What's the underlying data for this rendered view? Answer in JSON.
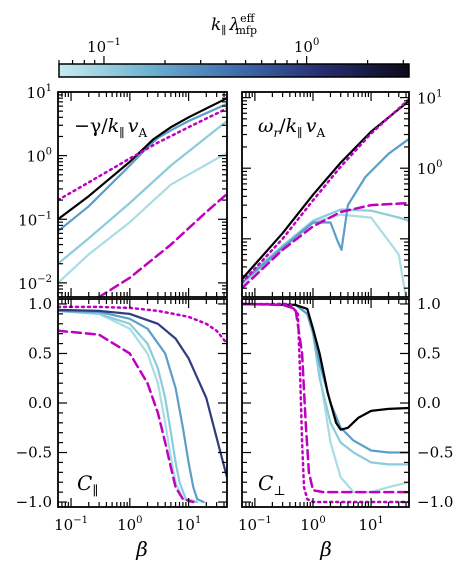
{
  "colorbar": {
    "label": "k_∥ λ_mfp^eff",
    "label_main": "k",
    "label_sub": "∥",
    "label_lambda": "λ",
    "label_sup": "eff",
    "label_sub2": "mfp",
    "tick_labels": [
      {
        "base": "10",
        "exp": "−1",
        "value": 0.1
      },
      {
        "base": "10",
        "exp": "0",
        "value": 1
      }
    ],
    "range": [
      0.06,
      3.2
    ],
    "log": true,
    "colormap": [
      "#c7ebee",
      "#6fb4d1",
      "#3f6fb0",
      "#272e72",
      "#0b0a1a"
    ]
  },
  "colors": {
    "curve_colors": [
      "#a9dde4",
      "#8ccbd9",
      "#5b9ec9",
      "#2f3d80",
      "#000000"
    ],
    "magenta": "#c000c0"
  },
  "x_axis": {
    "label": "β",
    "tick_labels": [
      {
        "base": "10",
        "exp": "−1",
        "value": 0.1
      },
      {
        "base": "10",
        "exp": "0",
        "value": 1
      },
      {
        "base": "10",
        "exp": "1",
        "value": 10
      }
    ],
    "range": [
      0.06,
      45
    ],
    "log": true
  },
  "top_left_y_ticks": [
    {
      "base": "10",
      "exp": "1",
      "value": 10
    },
    {
      "base": "10",
      "exp": "0",
      "value": 1
    },
    {
      "base": "10",
      "exp": "−1",
      "value": 0.1
    },
    {
      "base": "10",
      "exp": "−2",
      "value": 0.01
    }
  ],
  "top_right_y_ticks": [
    {
      "base": "10",
      "exp": "1",
      "value": 10
    },
    {
      "base": "10",
      "exp": "0",
      "value": 1
    }
  ],
  "bottom_y_ticks": [
    "1.0",
    "0.5",
    "0.0",
    "−0.5",
    "−1.0"
  ],
  "chart_data": [
    {
      "type": "line",
      "panel": "top-left",
      "title_parts": {
        "neg": "−γ/",
        "k": "k",
        "par": "∥",
        "v": "v",
        "A": "A"
      },
      "xlog": true,
      "ylog": true,
      "xlim": [
        0.06,
        45
      ],
      "ylim": [
        0.006,
        10
      ],
      "series": [
        {
          "x": [
            0.06,
            0.2,
            1,
            5,
            45
          ],
          "y": [
            0.01,
            0.028,
            0.09,
            0.35,
            1.1
          ],
          "style": "solid",
          "color_index": 0
        },
        {
          "x": [
            0.06,
            0.2,
            1,
            5,
            45
          ],
          "y": [
            0.02,
            0.05,
            0.18,
            0.7,
            3.5
          ],
          "style": "solid",
          "color_index": 1
        },
        {
          "x": [
            0.06,
            0.2,
            1,
            2,
            3,
            5,
            10,
            45
          ],
          "y": [
            0.065,
            0.16,
            0.7,
            1.35,
            1.9,
            2.5,
            3.5,
            6.5
          ],
          "style": "solid",
          "color_index": 2
        },
        {
          "x": [
            0.06,
            0.2,
            1,
            2.5,
            5,
            10,
            45
          ],
          "y": [
            0.1,
            0.23,
            0.8,
            1.8,
            2.8,
            4,
            8
          ],
          "style": "solid",
          "color_index": 4
        },
        {
          "x": [
            0.06,
            0.2,
            1,
            3,
            10,
            45
          ],
          "y": [
            0.2,
            0.38,
            0.9,
            1.6,
            2.8,
            5.5
          ],
          "style": "dotted",
          "color": "magenta"
        },
        {
          "x": [
            0.06,
            0.3,
            1,
            5,
            20,
            45
          ],
          "y": [
            0.004,
            0.006,
            0.012,
            0.04,
            0.13,
            0.25
          ],
          "style": "dashed",
          "color": "magenta"
        }
      ]
    },
    {
      "type": "line",
      "panel": "top-right",
      "title_parts": {
        "omega": "ω",
        "r": "r",
        "k": "k",
        "par": "∥",
        "v": "v",
        "A": "A"
      },
      "xlog": true,
      "ylog": true,
      "xlim": [
        0.06,
        45
      ],
      "ylim": [
        0.015,
        12
      ],
      "series": [
        {
          "x": [
            0.06,
            0.3,
            1,
            3,
            10,
            30,
            45
          ],
          "y": [
            0.025,
            0.08,
            0.18,
            0.26,
            0.25,
            0.2,
            0.18
          ],
          "style": "solid",
          "color_index": 1
        },
        {
          "x": [
            0.06,
            0.3,
            1,
            3,
            10,
            30,
            45
          ],
          "y": [
            0.022,
            0.07,
            0.17,
            0.22,
            0.2,
            0.06,
            0.008
          ],
          "style": "solid",
          "color_index": 0
        },
        {
          "x": [
            0.06,
            0.3,
            1,
            2,
            2.7,
            3.1,
            4,
            8,
            20,
            45
          ],
          "y": [
            0.024,
            0.075,
            0.17,
            0.17,
            0.09,
            0.07,
            0.3,
            0.75,
            1.6,
            2.6
          ],
          "style": "solid",
          "color_index": 2
        },
        {
          "x": [
            0.06,
            0.3,
            1,
            3,
            10,
            45
          ],
          "y": [
            0.027,
            0.12,
            0.42,
            1.2,
            3.3,
            9
          ],
          "style": "solid",
          "color_index": 4
        },
        {
          "x": [
            0.06,
            0.3,
            1,
            3,
            10,
            45
          ],
          "y": [
            0.024,
            0.1,
            0.35,
            1.05,
            3.1,
            9.5
          ],
          "style": "dotted",
          "color": "magenta"
        },
        {
          "x": [
            0.06,
            0.3,
            1,
            3,
            10,
            45
          ],
          "y": [
            0.02,
            0.07,
            0.15,
            0.24,
            0.3,
            0.32
          ],
          "style": "dashed",
          "color": "magenta"
        }
      ]
    },
    {
      "type": "line",
      "panel": "bottom-left",
      "title_parts": {
        "C": "C",
        "sub": "∥"
      },
      "xlog": true,
      "ylog": false,
      "xlim": [
        0.06,
        45
      ],
      "ylim": [
        -1.05,
        1.05
      ],
      "series": [
        {
          "x": [
            0.06,
            0.3,
            1,
            2,
            3,
            4,
            5,
            6,
            8,
            12
          ],
          "y": [
            0.93,
            0.9,
            0.75,
            0.5,
            0.2,
            -0.2,
            -0.55,
            -0.8,
            -0.97,
            -1.0
          ],
          "style": "solid",
          "color_index": 0
        },
        {
          "x": [
            0.06,
            0.3,
            1,
            2,
            3,
            4,
            5,
            6,
            7,
            9,
            14
          ],
          "y": [
            0.93,
            0.9,
            0.8,
            0.6,
            0.35,
            0.05,
            -0.3,
            -0.6,
            -0.8,
            -0.97,
            -1.0
          ],
          "style": "solid",
          "color_index": 1
        },
        {
          "x": [
            0.06,
            0.3,
            1,
            2,
            4,
            6,
            8,
            10,
            12,
            14,
            18
          ],
          "y": [
            0.93,
            0.92,
            0.85,
            0.75,
            0.5,
            0.15,
            -0.25,
            -0.6,
            -0.85,
            -0.97,
            -1.0
          ],
          "style": "solid",
          "color_index": 2
        },
        {
          "x": [
            0.06,
            0.3,
            1,
            3,
            6,
            10,
            20,
            30,
            45
          ],
          "y": [
            0.94,
            0.93,
            0.9,
            0.8,
            0.65,
            0.45,
            0.05,
            -0.35,
            -0.75
          ],
          "style": "solid",
          "color_index": 3
        },
        {
          "x": [
            0.06,
            0.3,
            1,
            3,
            10,
            20,
            30,
            45
          ],
          "y": [
            0.97,
            0.97,
            0.96,
            0.93,
            0.87,
            0.8,
            0.73,
            0.6
          ],
          "style": "dotted",
          "color": "magenta"
        },
        {
          "x": [
            0.06,
            0.3,
            1,
            2,
            3,
            4,
            5,
            6,
            8,
            12
          ],
          "y": [
            0.73,
            0.69,
            0.5,
            0.2,
            -0.1,
            -0.4,
            -0.65,
            -0.85,
            -0.97,
            -1.0
          ],
          "style": "dashed",
          "color": "magenta"
        }
      ]
    },
    {
      "type": "line",
      "panel": "bottom-right",
      "title_parts": {
        "C": "C",
        "sub": "⊥"
      },
      "xlog": true,
      "ylog": false,
      "xlim": [
        0.06,
        45
      ],
      "ylim": [
        -1.05,
        1.05
      ],
      "series": [
        {
          "x": [
            0.06,
            0.5,
            0.8,
            1,
            1.3,
            2,
            3,
            5,
            10,
            20,
            45
          ],
          "y": [
            1.0,
            0.99,
            0.9,
            0.7,
            0.3,
            -0.4,
            -0.75,
            -0.9,
            -0.9,
            -0.85,
            -0.8
          ],
          "style": "solid",
          "color_index": 0
        },
        {
          "x": [
            0.06,
            0.5,
            0.8,
            1,
            1.3,
            2,
            3,
            5,
            10,
            20,
            45
          ],
          "y": [
            1.0,
            0.99,
            0.9,
            0.7,
            0.25,
            -0.2,
            -0.4,
            -0.5,
            -0.6,
            -0.62,
            -0.62
          ],
          "style": "solid",
          "color_index": 1
        },
        {
          "x": [
            0.06,
            0.5,
            0.8,
            1,
            1.3,
            2,
            3,
            5,
            10,
            20,
            45
          ],
          "y": [
            1.0,
            0.99,
            0.9,
            0.72,
            0.4,
            0.0,
            -0.25,
            -0.38,
            -0.48,
            -0.5,
            -0.5
          ],
          "style": "solid",
          "color_index": 2
        },
        {
          "x": [
            0.06,
            0.5,
            0.8,
            1,
            1.3,
            1.8,
            2.5,
            3,
            4,
            6,
            10,
            20,
            45
          ],
          "y": [
            1.0,
            0.99,
            0.95,
            0.75,
            0.5,
            0.1,
            -0.2,
            -0.27,
            -0.25,
            -0.15,
            -0.08,
            -0.06,
            -0.05
          ],
          "style": "solid",
          "color_index": 4
        },
        {
          "x": [
            0.06,
            0.4,
            0.55,
            0.6,
            0.65,
            0.7,
            0.8,
            1,
            3,
            10,
            45
          ],
          "y": [
            1.0,
            1.0,
            0.9,
            0.3,
            -0.4,
            -0.85,
            -0.97,
            -1.0,
            -1.0,
            -1.0,
            -1.0
          ],
          "style": "dotted",
          "color": "magenta"
        },
        {
          "x": [
            0.06,
            0.3,
            0.5,
            0.65,
            0.75,
            0.85,
            1,
            1.5,
            3,
            10,
            45
          ],
          "y": [
            1.0,
            0.99,
            0.95,
            0.5,
            -0.2,
            -0.7,
            -0.88,
            -0.9,
            -0.9,
            -0.9,
            -0.9
          ],
          "style": "dashed",
          "color": "magenta"
        }
      ]
    }
  ]
}
